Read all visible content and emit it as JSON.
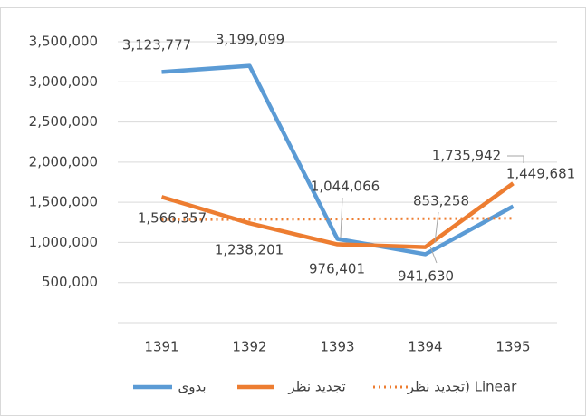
{
  "chart_data": {
    "type": "line",
    "categories": [
      "1391",
      "1392",
      "1393",
      "1394",
      "1395"
    ],
    "series": [
      {
        "name": "بدوی",
        "color": "#5b9bd5",
        "values": [
          3123777,
          3199099,
          1044066,
          853258,
          1449681
        ],
        "value_labels": [
          "3,123,777",
          "3,199,099",
          "1,044,066",
          "853,258",
          "1,449,681"
        ]
      },
      {
        "name": "تجدید نظر",
        "color": "#ed7d31",
        "values": [
          1566357,
          1238201,
          976401,
          941630,
          1735942
        ],
        "value_labels": [
          "1,566,357",
          "1,238,201",
          "976,401",
          "941,630",
          "1,735,942"
        ]
      },
      {
        "name": "تجدید نظر) Linear",
        "color": "#ed7d31",
        "dashed": true,
        "values": [
          1283186,
          1287446,
          1291706,
          1295966,
          1300226
        ]
      }
    ],
    "ylim": [
      0,
      3500000
    ],
    "yticks": [
      {
        "value": 500000,
        "label": "500,000"
      },
      {
        "value": 1000000,
        "label": "1,000,000"
      },
      {
        "value": 1500000,
        "label": "1,500,000"
      },
      {
        "value": 2000000,
        "label": "2,000,000"
      },
      {
        "value": 2500000,
        "label": "2,500,000"
      },
      {
        "value": 3000000,
        "label": "3,000,000"
      },
      {
        "value": 3500000,
        "label": "3,500,000"
      }
    ],
    "grid": true
  }
}
